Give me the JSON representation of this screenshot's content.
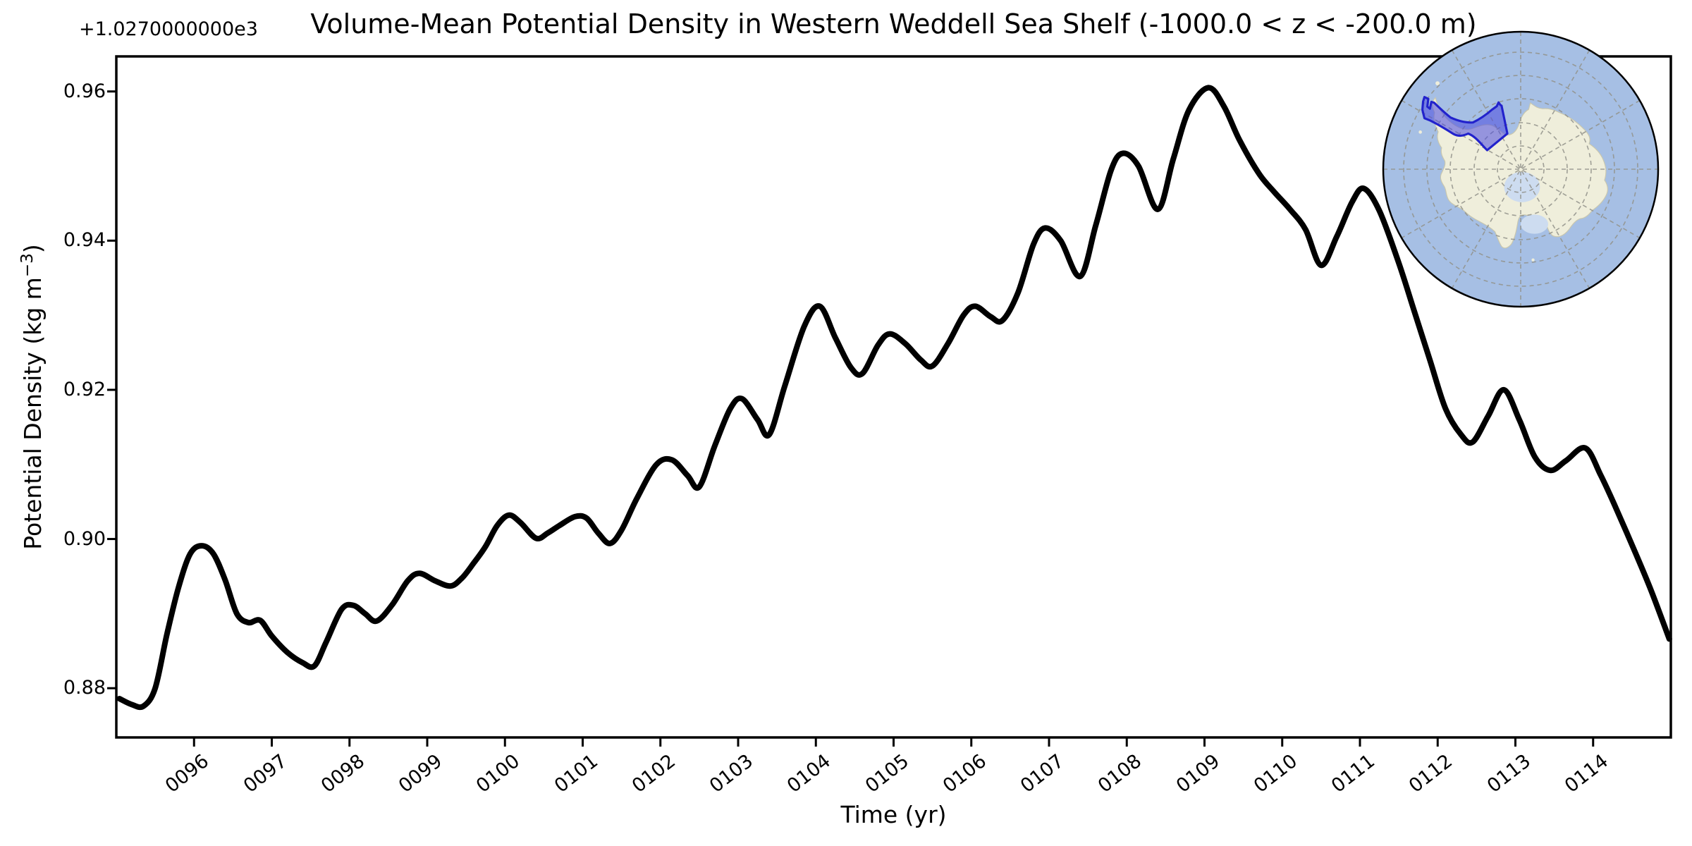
{
  "figure": {
    "title": "Volume-Mean Potential Density in Western Weddell Sea Shelf (-1000.0 < z < -200.0 m)",
    "background_color": "#ffffff"
  },
  "chart_data": {
    "type": "line",
    "title": "Volume-Mean Potential Density in Western Weddell Sea Shelf (-1000.0 < z < -200.0 m)",
    "xlabel": "Time (yr)",
    "ylabel": "Potential Density (kg m⁻³)",
    "ylabel_parts": {
      "pre": "Potential Density (kg m",
      "sup": "−3",
      "post": ")"
    },
    "y_axis_offset_text": "+1.0270000000e3",
    "y_offset_value": 1027,
    "xlim": [
      95.0,
      115.0
    ],
    "ylim": [
      0.8734,
      0.9647
    ],
    "grid": false,
    "legend": "none",
    "line_color": "#000000",
    "line_width": 8,
    "x_tick_values": [
      96,
      97,
      98,
      99,
      100,
      101,
      102,
      103,
      104,
      105,
      106,
      107,
      108,
      109,
      110,
      111,
      112,
      113,
      114
    ],
    "x_tick_labels": [
      "0096",
      "0097",
      "0098",
      "0099",
      "0100",
      "0101",
      "0102",
      "0103",
      "0104",
      "0105",
      "0106",
      "0107",
      "0108",
      "0109",
      "0110",
      "0111",
      "0112",
      "0113",
      "0114"
    ],
    "y_tick_values": [
      0.88,
      0.9,
      0.92,
      0.94,
      0.96
    ],
    "y_tick_labels": [
      "0.88",
      "0.90",
      "0.92",
      "0.94",
      "0.96"
    ],
    "series": [
      {
        "name": "volume-mean potential density (offset +1027 kg m-3)",
        "x": [
          95.04,
          95.2,
          95.35,
          95.5,
          95.65,
          95.8,
          95.95,
          96.1,
          96.25,
          96.4,
          96.55,
          96.7,
          96.85,
          97.0,
          97.2,
          97.4,
          97.55,
          97.7,
          97.9,
          98.05,
          98.2,
          98.35,
          98.55,
          98.75,
          98.9,
          99.1,
          99.3,
          99.45,
          99.6,
          99.75,
          99.9,
          100.05,
          100.2,
          100.4,
          100.55,
          100.7,
          100.9,
          101.05,
          101.2,
          101.35,
          101.5,
          101.7,
          101.95,
          102.15,
          102.35,
          102.5,
          102.7,
          102.9,
          103.05,
          103.25,
          103.4,
          103.6,
          103.85,
          104.05,
          104.25,
          104.45,
          104.6,
          104.8,
          104.95,
          105.15,
          105.35,
          105.5,
          105.7,
          105.9,
          106.05,
          106.25,
          106.4,
          106.6,
          106.8,
          106.95,
          107.15,
          107.4,
          107.6,
          107.8,
          107.95,
          108.15,
          108.4,
          108.6,
          108.8,
          109.05,
          109.25,
          109.45,
          109.7,
          109.9,
          110.1,
          110.3,
          110.5,
          110.7,
          110.9,
          111.05,
          111.25,
          111.5,
          111.7,
          111.9,
          112.1,
          112.3,
          112.45,
          112.65,
          112.85,
          113.05,
          113.25,
          113.45,
          113.65,
          113.9,
          114.1,
          114.3,
          114.55,
          114.75,
          114.98
        ],
        "y": [
          0.8786,
          0.8778,
          0.8776,
          0.88,
          0.8872,
          0.8935,
          0.898,
          0.8991,
          0.898,
          0.8945,
          0.89,
          0.8888,
          0.8891,
          0.887,
          0.8848,
          0.8834,
          0.883,
          0.8862,
          0.8906,
          0.8911,
          0.89,
          0.889,
          0.8912,
          0.8944,
          0.8954,
          0.8944,
          0.8937,
          0.8948,
          0.8968,
          0.899,
          0.9018,
          0.9032,
          0.9022,
          0.9001,
          0.9008,
          0.9018,
          0.903,
          0.9028,
          0.9008,
          0.8994,
          0.9012,
          0.9055,
          0.91,
          0.9106,
          0.9085,
          0.907,
          0.9125,
          0.9175,
          0.9188,
          0.916,
          0.914,
          0.9205,
          0.9285,
          0.9312,
          0.927,
          0.923,
          0.9222,
          0.926,
          0.9275,
          0.9262,
          0.924,
          0.9232,
          0.9262,
          0.93,
          0.9312,
          0.9298,
          0.9293,
          0.933,
          0.9395,
          0.9417,
          0.94,
          0.9352,
          0.942,
          0.9495,
          0.9517,
          0.95,
          0.9442,
          0.951,
          0.9575,
          0.9605,
          0.958,
          0.9535,
          0.949,
          0.9465,
          0.9442,
          0.9415,
          0.9367,
          0.9405,
          0.9452,
          0.947,
          0.944,
          0.937,
          0.9305,
          0.924,
          0.9175,
          0.914,
          0.913,
          0.9165,
          0.92,
          0.916,
          0.911,
          0.9092,
          0.9105,
          0.9122,
          0.9085,
          0.904,
          0.898,
          0.893,
          0.8866
        ]
      }
    ]
  },
  "inset_map": {
    "name": "antarctica-south-polar-stereographic-inset",
    "ocean_color": "#a6bfe4",
    "land_color": "#efeedb",
    "ice_shelf_color": "#cddcf0",
    "region_fill_color": "#4a4ade",
    "region_edge_color": "#2222cc",
    "graticule_color": "#92928a",
    "border_color": "#000000",
    "highlighted_region": "Western Weddell Sea Shelf"
  }
}
